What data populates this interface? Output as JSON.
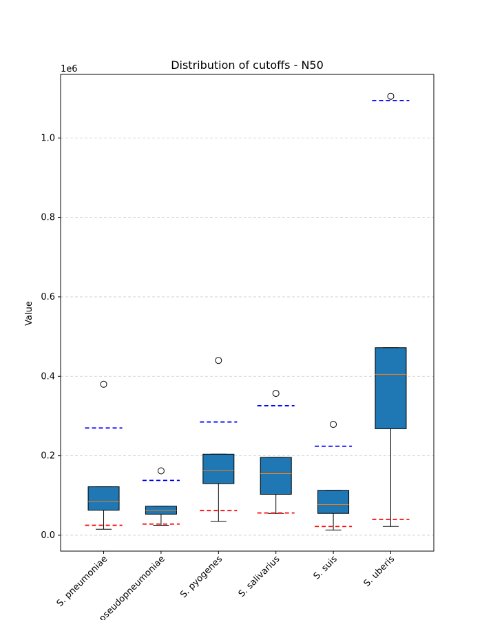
{
  "chart_data": {
    "type": "box",
    "title": "Distribution of cutoffs - N50",
    "ylabel": "Value",
    "xlabel": "",
    "offset_label": "1e6",
    "ylim": [
      -40000,
      1160000
    ],
    "yticks": [
      0.0,
      0.2,
      0.4,
      0.6,
      0.8,
      1.0
    ],
    "ytick_labels": [
      "0.0",
      "0.2",
      "0.4",
      "0.6",
      "0.8",
      "1.0"
    ],
    "grid": "y-dashed",
    "colors": {
      "box_fill": "#1f77b4",
      "median": "#ff7f0e",
      "upper_cutoff": "#0000ff",
      "lower_cutoff": "#ff0000",
      "grid": "#cccccc"
    },
    "categories": [
      "S. pneumoniae",
      "S. pseudopneumoniae",
      "S. pyogenes",
      "S. salivarius",
      "S. suis",
      "S. uberis"
    ],
    "boxes": [
      {
        "whisker_low": 15000,
        "q1": 63000,
        "median": 85000,
        "q3": 122000,
        "whisker_high": 122000,
        "outliers": [
          380000
        ],
        "lower_cutoff": 25000,
        "upper_cutoff": 270000
      },
      {
        "whisker_low": 25000,
        "q1": 53000,
        "median": 62000,
        "q3": 73000,
        "whisker_high": 73000,
        "outliers": [
          162000
        ],
        "lower_cutoff": 28000,
        "upper_cutoff": 138000
      },
      {
        "whisker_low": 35000,
        "q1": 130000,
        "median": 163000,
        "q3": 204000,
        "whisker_high": 204000,
        "outliers": [
          440000
        ],
        "lower_cutoff": 62000,
        "upper_cutoff": 285000
      },
      {
        "whisker_low": 55000,
        "q1": 103000,
        "median": 155000,
        "q3": 196000,
        "whisker_high": 196000,
        "outliers": [
          357000
        ],
        "lower_cutoff": 56000,
        "upper_cutoff": 326000
      },
      {
        "whisker_low": 13000,
        "q1": 55000,
        "median": 77000,
        "q3": 113000,
        "whisker_high": 113000,
        "outliers": [
          279000
        ],
        "lower_cutoff": 22000,
        "upper_cutoff": 224000
      },
      {
        "whisker_low": 22000,
        "q1": 268000,
        "median": 405000,
        "q3": 472000,
        "whisker_high": 472000,
        "outliers": [
          1105000
        ],
        "lower_cutoff": 40000,
        "upper_cutoff": 1094000
      }
    ]
  }
}
